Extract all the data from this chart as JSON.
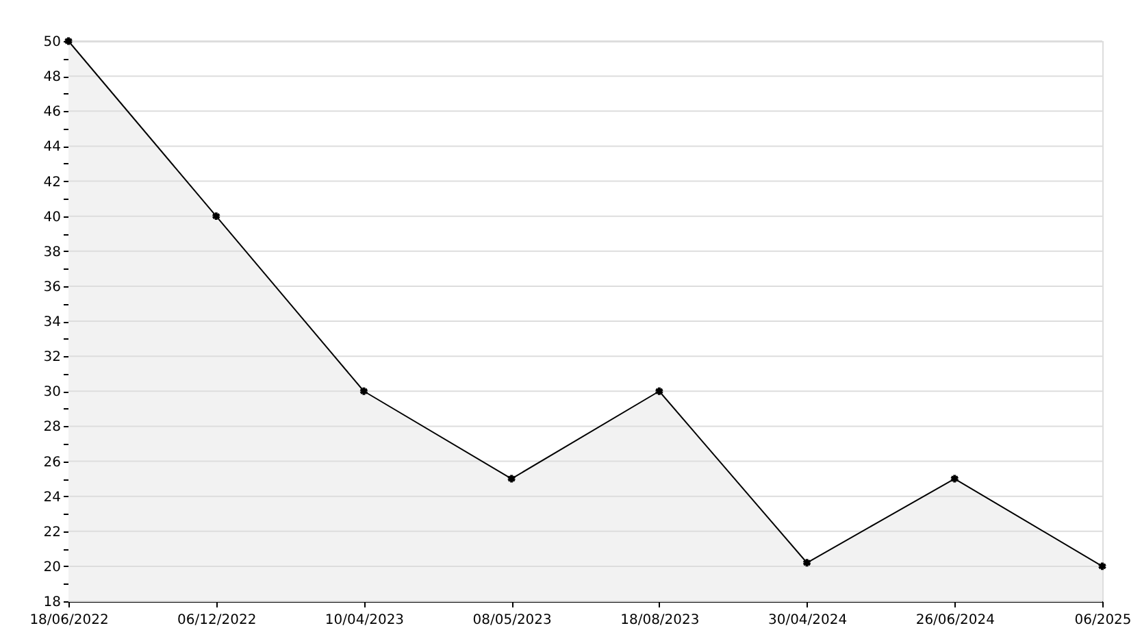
{
  "chart_data": {
    "type": "area",
    "categories": [
      "18/06/2022",
      "06/12/2022",
      "10/04/2023",
      "08/05/2023",
      "18/08/2023",
      "30/04/2024",
      "26/06/2024",
      "06/2025"
    ],
    "series": [
      {
        "color": "#f2f2f2",
        "values": [
          50,
          40,
          30,
          25,
          30,
          20.2,
          25,
          20
        ]
      }
    ],
    "ylim": [
      18,
      50
    ],
    "yticks": [
      18,
      {
        "value": 19,
        "label": null
      },
      20,
      {
        "value": 21,
        "label": null
      },
      22,
      {
        "value": 23,
        "label": null
      },
      24,
      {
        "value": 25,
        "label": null
      },
      26,
      {
        "value": 27,
        "label": null
      },
      28,
      {
        "value": 29,
        "label": null
      },
      30,
      {
        "value": 31,
        "label": null
      },
      32,
      {
        "value": 33,
        "label": null
      },
      34,
      {
        "value": 35,
        "label": null
      },
      36,
      {
        "value": 37,
        "label": null
      },
      38,
      {
        "value": 39,
        "label": null
      },
      40,
      {
        "value": 41,
        "label": null
      },
      42,
      {
        "value": 43,
        "label": null
      },
      44,
      {
        "value": 45,
        "label": null
      },
      46,
      {
        "value": 47,
        "label": null
      },
      48,
      {
        "value": 49,
        "label": null
      },
      50
    ],
    "grid": "y",
    "marker": "cross",
    "line_style": "solid"
  }
}
